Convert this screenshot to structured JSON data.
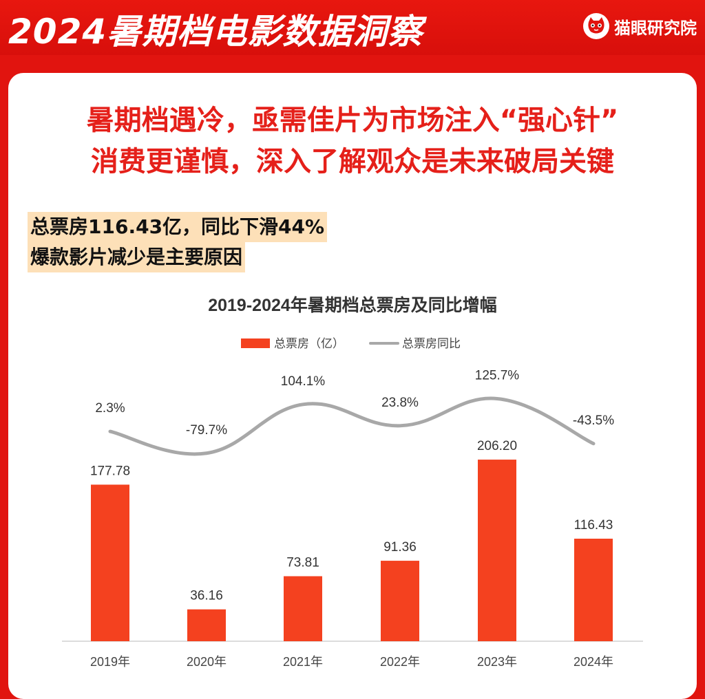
{
  "header": {
    "title": "2024暑期档电影数据洞察",
    "brand_name": "猫眼研究院",
    "brand_icon": "cat-logo-icon"
  },
  "headline": {
    "line1": "暑期档遇冷，亟需佳片为市场注入“强心针”",
    "line2": "消费更谨慎，深入了解观众是未来破局关键"
  },
  "note": {
    "line1": "总票房116.43亿，同比下滑44%",
    "line2": "爆款影片减少是主要原因"
  },
  "colors": {
    "background": "#e1140f",
    "headline": "#e5201a",
    "bar": "#f4411f",
    "line": "#a8a8a8",
    "note_bg": "#fde0b8"
  },
  "chart_data": {
    "type": "bar",
    "title": "2019-2024年暑期档总票房及同比增幅",
    "categories": [
      "2019年",
      "2020年",
      "2021年",
      "2022年",
      "2023年",
      "2024年"
    ],
    "series": [
      {
        "name": "总票房（亿）",
        "type": "bar",
        "values": [
          177.78,
          36.16,
          73.81,
          91.36,
          206.2,
          116.43
        ],
        "labels": [
          "177.78",
          "36.16",
          "73.81",
          "91.36",
          "206.20",
          "116.43"
        ]
      },
      {
        "name": "总票房同比",
        "type": "line",
        "values": [
          2.3,
          -79.7,
          104.1,
          23.8,
          125.7,
          -43.5
        ],
        "labels": [
          "2.3%",
          "-79.7%",
          "104.1%",
          "23.8%",
          "125.7%",
          "-43.5%"
        ]
      }
    ],
    "legend": "top-center",
    "grid": false
  }
}
